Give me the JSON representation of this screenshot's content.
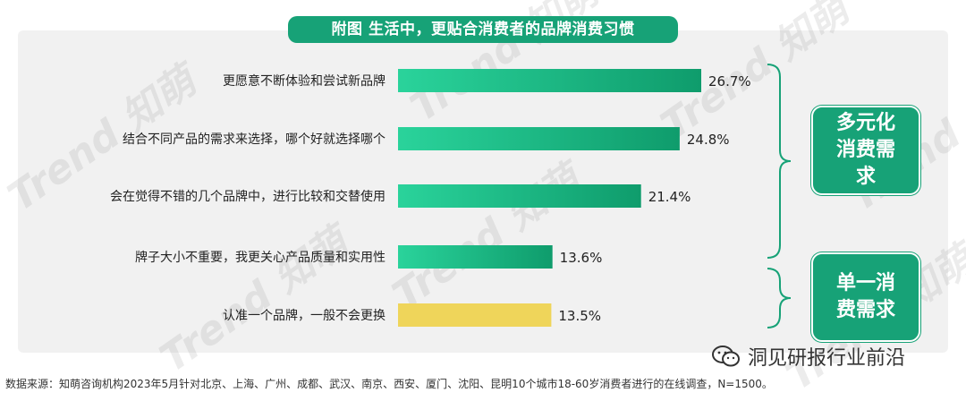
{
  "title": "附图 生活中，更贴合消费者的品牌消费习惯",
  "chart_data": {
    "type": "bar",
    "orientation": "horizontal",
    "categories": [
      "更愿意不断体验和尝试新品牌",
      "结合不同产品的需求来选择，哪个好就选择哪个",
      "会在觉得不错的几个品牌中，进行比较和交替使用",
      "牌子大小不重要，我更关心产品质量和实用性",
      "认准一个品牌，一般不会更换"
    ],
    "values": [
      26.7,
      24.8,
      21.4,
      13.6,
      13.5
    ],
    "value_labels": [
      "26.7%",
      "24.8%",
      "21.4%",
      "13.6%",
      "13.5%"
    ],
    "bar_colors": [
      "#17b884",
      "#17b884",
      "#17b884",
      "#17b884",
      "#efd55a"
    ],
    "xlim": [
      0,
      26.7
    ]
  },
  "groups": [
    {
      "label": "多元化消费需求",
      "items": [
        0,
        1,
        2,
        3
      ]
    },
    {
      "label": "单一消费需求",
      "items": [
        4
      ]
    }
  ],
  "colors": {
    "accent": "#17a277",
    "bar": "#17b884",
    "highlight": "#efd55a"
  },
  "footnote": "数据来源：知萌咨询机构2023年5月针对北京、上海、广州、成都、武汉、南京、西安、厦门、沈阳、昆明10个城市18-60岁消费者进行的在线调查，N=1500。",
  "watermark": "Trend 知萌",
  "wechat": {
    "icon": "wechat-icon",
    "label": "洞见研报行业前沿"
  }
}
